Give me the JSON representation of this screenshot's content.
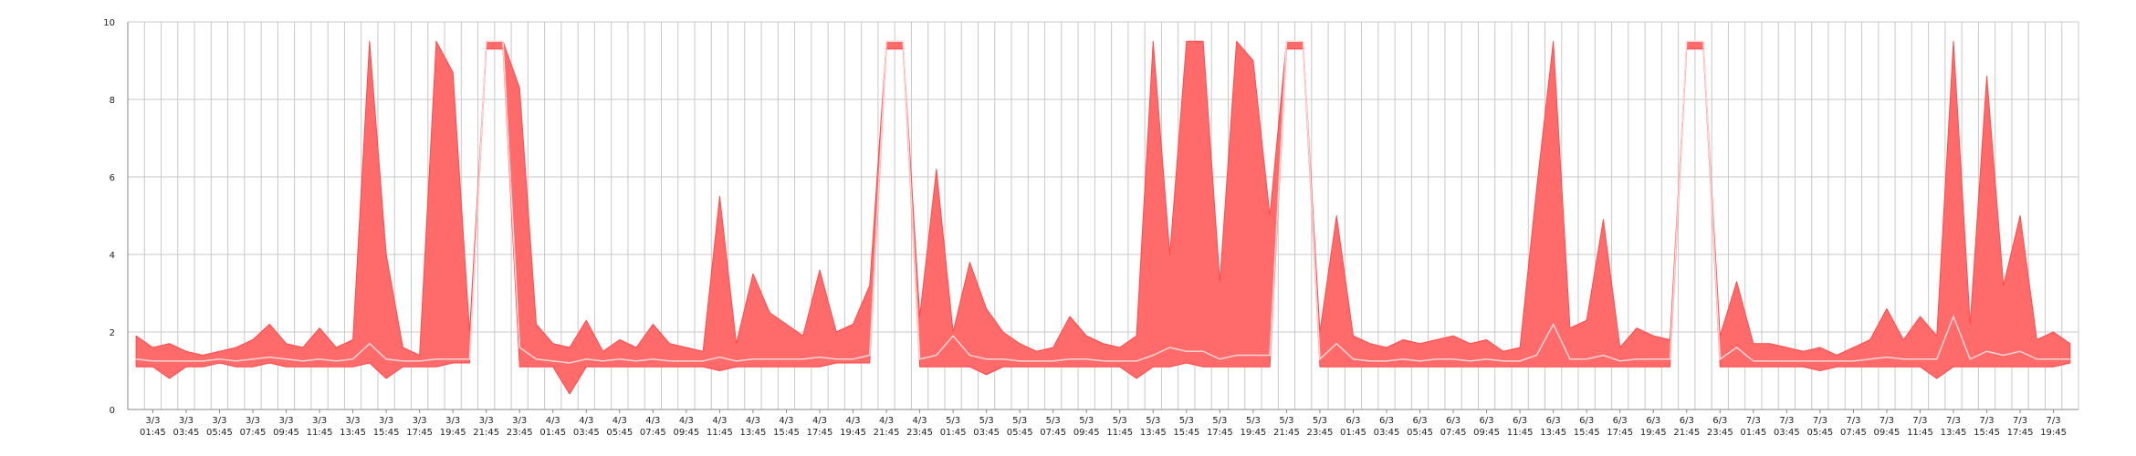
{
  "chart_data": {
    "type": "range-area",
    "categories": [
      null,
      "3/3\n01:45",
      null,
      "3/3\n03:45",
      null,
      "3/3\n05:45",
      null,
      "3/3\n07:45",
      null,
      "3/3\n09:45",
      null,
      "3/3\n11:45",
      null,
      "3/3\n13:45",
      null,
      "3/3\n15:45",
      null,
      "3/3\n17:45",
      null,
      "3/3\n19:45",
      null,
      "3/3\n21:45",
      null,
      "3/3\n23:45",
      null,
      "4/3\n01:45",
      null,
      "4/3\n03:45",
      null,
      "4/3\n05:45",
      null,
      "4/3\n07:45",
      null,
      "4/3\n09:45",
      null,
      "4/3\n11:45",
      null,
      "4/3\n13:45",
      null,
      "4/3\n15:45",
      null,
      "4/3\n17:45",
      null,
      "4/3\n19:45",
      null,
      "4/3\n21:45",
      null,
      "4/3\n23:45",
      null,
      "5/3\n01:45",
      null,
      "5/3\n03:45",
      null,
      "5/3\n05:45",
      null,
      "5/3\n07:45",
      null,
      "5/3\n09:45",
      null,
      "5/3\n11:45",
      null,
      "5/3\n13:45",
      null,
      "5/3\n15:45",
      null,
      "5/3\n17:45",
      null,
      "5/3\n19:45",
      null,
      "5/3\n21:45",
      null,
      "5/3\n23:45",
      null,
      "6/3\n01:45",
      null,
      "6/3\n03:45",
      null,
      "6/3\n05:45",
      null,
      "6/3\n07:45",
      null,
      "6/3\n09:45",
      null,
      "6/3\n11:45",
      null,
      "6/3\n13:45",
      null,
      "6/3\n15:45",
      null,
      "6/3\n17:45",
      null,
      "6/3\n19:45",
      null,
      "6/3\n21:45",
      null,
      "6/3\n23:45",
      null,
      "7/3\n01:45",
      null,
      "7/3\n03:45",
      null,
      "7/3\n05:45",
      null,
      "7/3\n07:45",
      null,
      "7/3\n09:45",
      null,
      "7/3\n11:45",
      null,
      "7/3\n13:45",
      null,
      "7/3\n15:45",
      null,
      "7/3\n17:45",
      null,
      "7/3\n19:45",
      null
    ],
    "high": [
      1.9,
      1.6,
      1.7,
      1.5,
      1.4,
      1.5,
      1.6,
      1.8,
      2.2,
      1.7,
      1.6,
      2.1,
      1.6,
      1.8,
      9.5,
      4.0,
      1.6,
      1.4,
      9.5,
      8.7,
      2.0,
      9.5,
      9.5,
      8.3,
      2.2,
      1.7,
      1.6,
      2.3,
      1.5,
      1.8,
      1.6,
      2.2,
      1.7,
      1.6,
      1.5,
      5.5,
      1.7,
      3.5,
      2.5,
      2.2,
      1.9,
      3.6,
      2.0,
      2.2,
      3.2,
      9.5,
      9.5,
      2.4,
      6.2,
      2.0,
      3.8,
      2.6,
      2.0,
      1.7,
      1.5,
      1.6,
      2.4,
      1.9,
      1.7,
      1.6,
      1.9,
      9.5,
      4.0,
      9.5,
      9.5,
      3.3,
      9.5,
      9.0,
      5.0,
      9.5,
      9.5,
      2.0,
      5.0,
      1.9,
      1.7,
      1.6,
      1.8,
      1.7,
      1.8,
      1.9,
      1.7,
      1.8,
      1.5,
      1.6,
      5.7,
      9.5,
      2.1,
      2.3,
      4.9,
      1.6,
      2.1,
      1.9,
      1.8,
      9.5,
      9.5,
      1.9,
      3.3,
      1.7,
      1.7,
      1.6,
      1.5,
      1.6,
      1.4,
      1.6,
      1.8,
      2.6,
      1.8,
      2.4,
      1.9,
      9.5,
      2.2,
      8.6,
      3.2,
      5.0,
      1.8,
      2.0,
      1.7
    ],
    "low": [
      1.1,
      1.1,
      0.8,
      1.1,
      1.1,
      1.2,
      1.1,
      1.1,
      1.2,
      1.1,
      1.1,
      1.1,
      1.1,
      1.1,
      1.2,
      0.8,
      1.1,
      1.1,
      1.1,
      1.2,
      1.2,
      9.3,
      9.3,
      1.1,
      1.1,
      1.1,
      0.4,
      1.1,
      1.1,
      1.1,
      1.1,
      1.1,
      1.1,
      1.1,
      1.1,
      1.0,
      1.1,
      1.1,
      1.1,
      1.1,
      1.1,
      1.1,
      1.2,
      1.2,
      1.2,
      9.3,
      9.3,
      1.1,
      1.1,
      1.1,
      1.1,
      0.9,
      1.1,
      1.1,
      1.1,
      1.1,
      1.1,
      1.1,
      1.1,
      1.1,
      0.8,
      1.1,
      1.1,
      1.2,
      1.1,
      1.1,
      1.1,
      1.1,
      1.1,
      9.3,
      9.3,
      1.1,
      1.1,
      1.1,
      1.1,
      1.1,
      1.1,
      1.1,
      1.1,
      1.1,
      1.1,
      1.1,
      1.1,
      1.1,
      1.1,
      1.1,
      1.1,
      1.1,
      1.1,
      1.1,
      1.1,
      1.1,
      1.1,
      9.3,
      9.3,
      1.1,
      1.1,
      1.1,
      1.1,
      1.1,
      1.1,
      1.0,
      1.1,
      1.1,
      1.1,
      1.1,
      1.1,
      1.1,
      0.8,
      1.1,
      1.1,
      1.1,
      1.1,
      1.1,
      1.1,
      1.1,
      1.2
    ],
    "mean": [
      1.3,
      1.25,
      1.25,
      1.25,
      1.25,
      1.3,
      1.25,
      1.3,
      1.35,
      1.3,
      1.25,
      1.3,
      1.25,
      1.3,
      1.7,
      1.3,
      1.25,
      1.25,
      1.3,
      1.3,
      1.3,
      9.5,
      9.5,
      1.6,
      1.3,
      1.25,
      1.2,
      1.3,
      1.25,
      1.3,
      1.25,
      1.3,
      1.25,
      1.25,
      1.25,
      1.35,
      1.25,
      1.3,
      1.3,
      1.3,
      1.3,
      1.35,
      1.3,
      1.3,
      1.4,
      9.5,
      9.5,
      1.3,
      1.4,
      1.9,
      1.4,
      1.3,
      1.3,
      1.25,
      1.25,
      1.25,
      1.3,
      1.3,
      1.25,
      1.25,
      1.25,
      1.4,
      1.6,
      1.5,
      1.5,
      1.3,
      1.4,
      1.4,
      1.4,
      9.5,
      9.5,
      1.3,
      1.7,
      1.3,
      1.25,
      1.25,
      1.3,
      1.25,
      1.3,
      1.3,
      1.25,
      1.3,
      1.25,
      1.25,
      1.4,
      2.2,
      1.3,
      1.3,
      1.4,
      1.25,
      1.3,
      1.3,
      1.3,
      9.5,
      9.5,
      1.3,
      1.6,
      1.25,
      1.25,
      1.25,
      1.25,
      1.25,
      1.25,
      1.25,
      1.3,
      1.35,
      1.3,
      1.3,
      1.3,
      2.4,
      1.3,
      1.5,
      1.4,
      1.5,
      1.3,
      1.3,
      1.3
    ],
    "fill": "#ff6b6b",
    "stroke": "#ff4a4a",
    "mean_color": "#ffd6d6",
    "ylim": [
      0,
      10
    ],
    "yticks": [
      0,
      2,
      4,
      6,
      8,
      10
    ],
    "grid": true
  }
}
